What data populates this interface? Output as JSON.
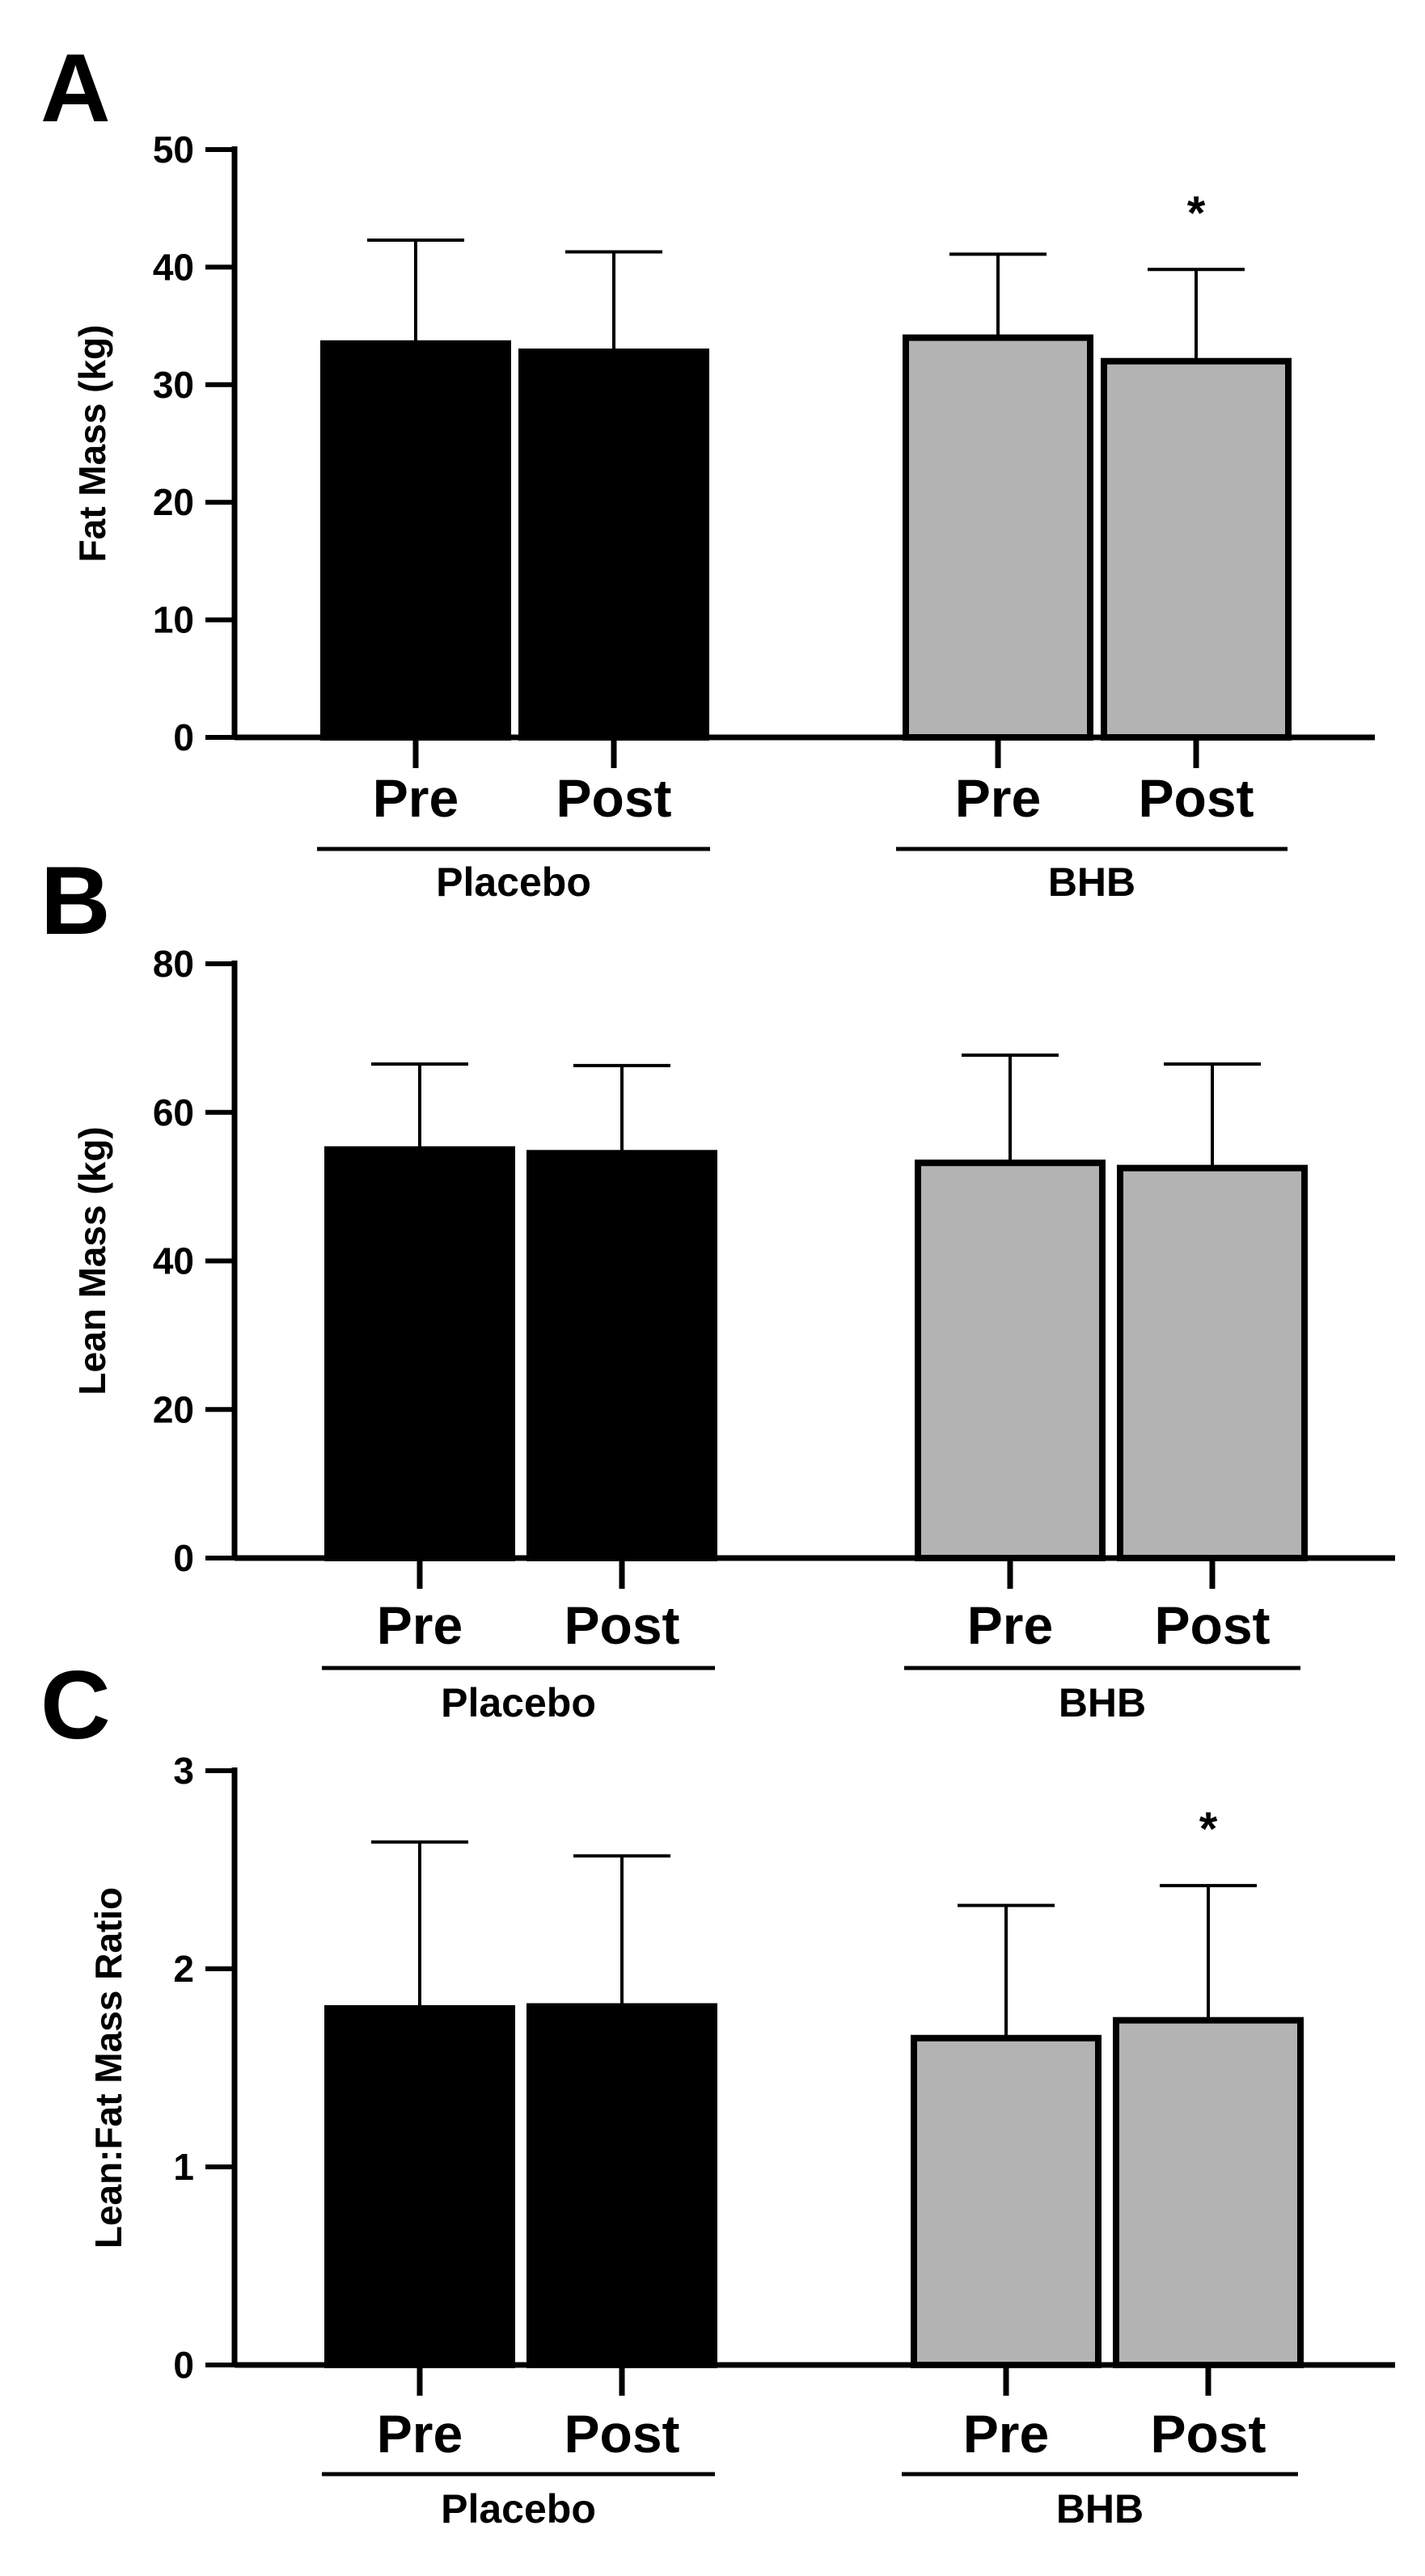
{
  "colors": {
    "placebo": "#000000",
    "bhb": "#b3b3b3",
    "axis": "#000000"
  },
  "chart_data": [
    {
      "type": "bar",
      "panel_letter": "A",
      "ylabel": "Fat Mass (kg)",
      "ylim": [
        0,
        50
      ],
      "yticks": [
        0,
        10,
        20,
        30,
        40,
        50
      ],
      "categories": [
        "Pre",
        "Post",
        "Pre",
        "Post"
      ],
      "groups": [
        {
          "label": "Placebo",
          "color": "#000000",
          "bars": [
            {
              "category": "Pre",
              "value": 33.5,
              "error": 8.8
            },
            {
              "category": "Post",
              "value": 32.8,
              "error": 8.5
            }
          ]
        },
        {
          "label": "BHB",
          "color": "#b3b3b3",
          "bars": [
            {
              "category": "Pre",
              "value": 34.0,
              "error": 7.1
            },
            {
              "category": "Post",
              "value": 32.0,
              "error": 7.8,
              "annotation": "*"
            }
          ]
        }
      ],
      "grid": false
    },
    {
      "type": "bar",
      "panel_letter": "B",
      "ylabel": "Lean Mass (kg)",
      "ylim": [
        0,
        80
      ],
      "yticks": [
        0,
        20,
        40,
        60,
        80
      ],
      "categories": [
        "Pre",
        "Post",
        "Pre",
        "Post"
      ],
      "groups": [
        {
          "label": "Placebo",
          "color": "#000000",
          "bars": [
            {
              "category": "Pre",
              "value": 55.0,
              "error": 11.5
            },
            {
              "category": "Post",
              "value": 54.5,
              "error": 11.8
            }
          ]
        },
        {
          "label": "BHB",
          "color": "#b3b3b3",
          "bars": [
            {
              "category": "Pre",
              "value": 53.2,
              "error": 14.5
            },
            {
              "category": "Post",
              "value": 52.5,
              "error": 14.0
            }
          ]
        }
      ],
      "grid": false
    },
    {
      "type": "bar",
      "panel_letter": "C",
      "ylabel": "Lean:Fat Mass Ratio",
      "ylim": [
        0,
        3
      ],
      "yticks": [
        0,
        1,
        2,
        3
      ],
      "categories": [
        "Pre",
        "Post",
        "Pre",
        "Post"
      ],
      "groups": [
        {
          "label": "Placebo",
          "color": "#000000",
          "bars": [
            {
              "category": "Pre",
              "value": 1.8,
              "error": 0.84
            },
            {
              "category": "Post",
              "value": 1.81,
              "error": 0.76
            }
          ]
        },
        {
          "label": "BHB",
          "color": "#b3b3b3",
          "bars": [
            {
              "category": "Pre",
              "value": 1.65,
              "error": 0.67
            },
            {
              "category": "Post",
              "value": 1.74,
              "error": 0.68,
              "annotation": "*"
            }
          ]
        }
      ],
      "grid": false
    }
  ]
}
